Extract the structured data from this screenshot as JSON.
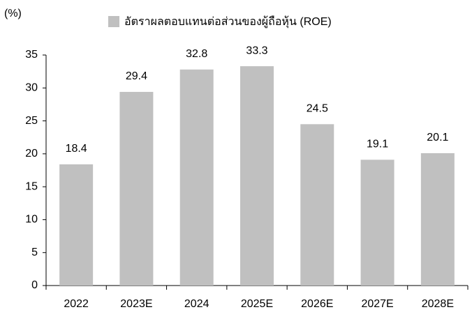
{
  "chart_data": {
    "type": "bar",
    "y_label": "(%)",
    "categories": [
      "2022",
      "2023E",
      "2024",
      "2025E",
      "2026E",
      "2027E",
      "2028E"
    ],
    "series": [
      {
        "name": "อัตราผลตอบแทนต่อส่วนของผู้ถือหุ้น (ROE)",
        "color": "#c0c0c0",
        "values": [
          18.4,
          29.4,
          32.8,
          33.3,
          24.5,
          19.1,
          20.1
        ]
      }
    ],
    "ylim": [
      0,
      35
    ],
    "yticks": [
      0,
      5,
      10,
      15,
      20,
      25,
      30,
      35
    ],
    "grid": false
  }
}
